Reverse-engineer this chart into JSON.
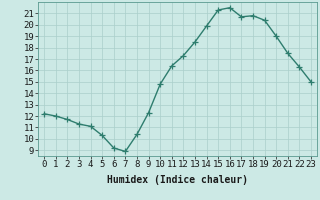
{
  "x": [
    0,
    1,
    2,
    3,
    4,
    5,
    6,
    7,
    8,
    9,
    10,
    11,
    12,
    13,
    14,
    15,
    16,
    17,
    18,
    19,
    20,
    21,
    22,
    23
  ],
  "y": [
    12.2,
    12.0,
    11.7,
    11.3,
    11.1,
    10.3,
    9.2,
    8.9,
    10.4,
    12.3,
    14.8,
    16.4,
    17.3,
    18.5,
    19.9,
    21.3,
    21.5,
    20.7,
    20.8,
    20.4,
    19.0,
    17.5,
    16.3,
    15.0
  ],
  "line_color": "#2e7d6e",
  "marker": "+",
  "marker_size": 4,
  "bg_color": "#cce9e5",
  "grid_color": "#aacfcb",
  "xlabel": "Humidex (Indice chaleur)",
  "xlim": [
    -0.5,
    23.5
  ],
  "ylim": [
    8.5,
    22.0
  ],
  "yticks": [
    9,
    10,
    11,
    12,
    13,
    14,
    15,
    16,
    17,
    18,
    19,
    20,
    21
  ],
  "xticks": [
    0,
    1,
    2,
    3,
    4,
    5,
    6,
    7,
    8,
    9,
    10,
    11,
    12,
    13,
    14,
    15,
    16,
    17,
    18,
    19,
    20,
    21,
    22,
    23
  ],
  "xlabel_fontsize": 7,
  "tick_fontsize": 6.5,
  "line_width": 1.0,
  "marker_edge_width": 0.9
}
